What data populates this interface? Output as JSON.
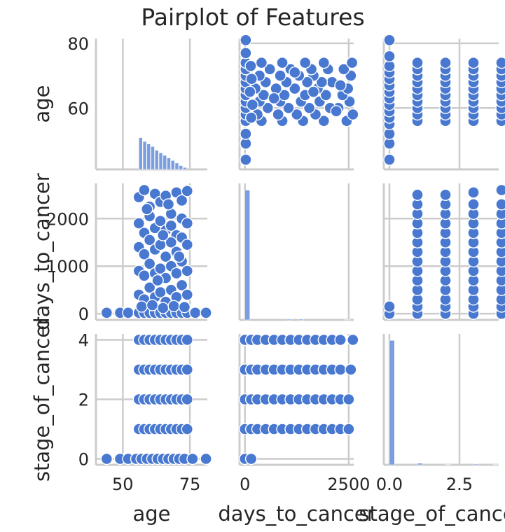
{
  "chart_data": {
    "type": "scatter",
    "title": "Pairplot of Features",
    "variables": [
      "age",
      "days_to_cancer",
      "stage_of_cancer"
    ],
    "axis_labels": {
      "x": [
        "age",
        "days_to_cancer",
        "stage_of_cancer"
      ],
      "y": [
        "age",
        "days_to_cancer",
        "stage_of_cancer"
      ]
    },
    "ranges": {
      "age": [
        41,
        81.5
      ],
      "days_to_cancer": [
        -130,
        2740
      ],
      "stage_of_cancer": [
        -0.2,
        4.2
      ]
    },
    "x_ranges": {
      "age": [
        40,
        81.5
      ],
      "days_to_cancer": [
        -130,
        2620
      ],
      "stage_of_cancer": [
        -0.2,
        3.9
      ]
    },
    "ticks": {
      "x": {
        "age": [
          {
            "v": 50,
            "label": "50"
          },
          {
            "v": 75,
            "label": "75"
          }
        ],
        "days_to_cancer": [
          {
            "v": 0,
            "label": "0"
          },
          {
            "v": 2500,
            "label": "2500"
          }
        ],
        "stage_of_cancer": [
          {
            "v": 0,
            "label": "0.0"
          },
          {
            "v": 2.5,
            "label": "2.5"
          }
        ]
      },
      "y": {
        "age": [
          {
            "v": 60,
            "label": "60"
          },
          {
            "v": 80,
            "label": "80"
          }
        ],
        "days_to_cancer": [
          {
            "v": 0,
            "label": "0"
          },
          {
            "v": 1000,
            "label": "1000"
          },
          {
            "v": 2000,
            "label": "2000"
          }
        ],
        "stage_of_cancer": [
          {
            "v": 0,
            "label": "0"
          },
          {
            "v": 2,
            "label": "2"
          },
          {
            "v": 4,
            "label": "4"
          }
        ]
      }
    },
    "histograms": {
      "age": {
        "bins": [
          [
            56,
            57.5
          ],
          [
            57.5,
            59
          ],
          [
            59,
            60.5
          ],
          [
            60.5,
            62
          ],
          [
            62,
            63.5
          ],
          [
            63.5,
            65
          ],
          [
            65,
            66.5
          ],
          [
            66.5,
            68
          ],
          [
            68,
            69.5
          ],
          [
            69.5,
            71
          ],
          [
            71,
            72.5
          ],
          [
            72.5,
            74
          ]
        ],
        "counts": [
          0.25,
          0.22,
          0.2,
          0.18,
          0.15,
          0.13,
          0.11,
          0.09,
          0.07,
          0.05,
          0.03,
          0.015
        ]
      },
      "days_to_cancer": {
        "bins": [
          [
            0,
            130
          ],
          [
            1000,
            1130
          ],
          [
            1300,
            1430
          ],
          [
            2400,
            2530
          ]
        ],
        "counts": [
          0.98,
          0.006,
          0.006,
          0.004
        ]
      },
      "stage_of_cancer": {
        "bins": [
          [
            0,
            0.2
          ],
          [
            1,
            1.2
          ],
          [
            2,
            2.2
          ],
          [
            3,
            3.2
          ],
          [
            3.7,
            3.9
          ]
        ],
        "counts": [
          0.98,
          0.012,
          0.004,
          0.006,
          0.004
        ]
      }
    },
    "scatter": {
      "age_vs_days_to_cancer": [
        [
          44,
          20
        ],
        [
          49,
          20
        ],
        [
          52,
          20
        ],
        [
          56,
          20
        ],
        [
          58,
          20
        ],
        [
          60,
          20
        ],
        [
          62,
          20
        ],
        [
          64,
          20
        ],
        [
          66,
          20
        ],
        [
          68,
          20
        ],
        [
          70,
          20
        ],
        [
          72,
          20
        ],
        [
          74,
          20
        ],
        [
          77,
          20
        ],
        [
          81,
          20
        ],
        [
          56,
          2450
        ],
        [
          58,
          2600
        ],
        [
          60,
          2250
        ],
        [
          62,
          2520
        ],
        [
          64,
          2350
        ],
        [
          66,
          2480
        ],
        [
          68,
          2100
        ],
        [
          70,
          2550
        ],
        [
          72,
          2380
        ],
        [
          74,
          2580
        ],
        [
          56,
          1900
        ],
        [
          58,
          1700
        ],
        [
          60,
          2050
        ],
        [
          62,
          1800
        ],
        [
          64,
          1950
        ],
        [
          66,
          1750
        ],
        [
          68,
          1850
        ],
        [
          70,
          1650
        ],
        [
          72,
          2000
        ],
        [
          74,
          1900
        ],
        [
          56,
          1400
        ],
        [
          58,
          1250
        ],
        [
          60,
          1550
        ],
        [
          62,
          1350
        ],
        [
          64,
          1450
        ],
        [
          66,
          1200
        ],
        [
          68,
          1500
        ],
        [
          70,
          1300
        ],
        [
          72,
          1600
        ],
        [
          74,
          1450
        ],
        [
          56,
          900
        ],
        [
          58,
          800
        ],
        [
          60,
          1050
        ],
        [
          62,
          850
        ],
        [
          64,
          950
        ],
        [
          66,
          750
        ],
        [
          68,
          1000
        ],
        [
          70,
          850
        ],
        [
          72,
          1100
        ],
        [
          74,
          900
        ],
        [
          56,
          400
        ],
        [
          58,
          300
        ],
        [
          60,
          550
        ],
        [
          62,
          350
        ],
        [
          64,
          450
        ],
        [
          66,
          250
        ],
        [
          68,
          500
        ],
        [
          70,
          350
        ],
        [
          72,
          600
        ],
        [
          74,
          400
        ],
        [
          57,
          150
        ],
        [
          61,
          180
        ],
        [
          65,
          120
        ],
        [
          69,
          160
        ],
        [
          73,
          140
        ],
        [
          59,
          2200
        ],
        [
          67,
          2300
        ],
        [
          71,
          1200
        ],
        [
          63,
          700
        ],
        [
          65,
          1650
        ]
      ],
      "age_vs_stage": [
        [
          44,
          0
        ],
        [
          49,
          0
        ],
        [
          52,
          0
        ],
        [
          55,
          0
        ],
        [
          57,
          0
        ],
        [
          59,
          0
        ],
        [
          61,
          0
        ],
        [
          63,
          0
        ],
        [
          65,
          0
        ],
        [
          67,
          0
        ],
        [
          69,
          0
        ],
        [
          71,
          0
        ],
        [
          73,
          0
        ],
        [
          76,
          0
        ],
        [
          81,
          0
        ],
        [
          56,
          1
        ],
        [
          58,
          1
        ],
        [
          60,
          1
        ],
        [
          62,
          1
        ],
        [
          64,
          1
        ],
        [
          66,
          1
        ],
        [
          68,
          1
        ],
        [
          70,
          1
        ],
        [
          72,
          1
        ],
        [
          74,
          1
        ],
        [
          56,
          2
        ],
        [
          58,
          2
        ],
        [
          60,
          2
        ],
        [
          62,
          2
        ],
        [
          64,
          2
        ],
        [
          66,
          2
        ],
        [
          68,
          2
        ],
        [
          70,
          2
        ],
        [
          72,
          2
        ],
        [
          74,
          2
        ],
        [
          56,
          3
        ],
        [
          58,
          3
        ],
        [
          60,
          3
        ],
        [
          62,
          3
        ],
        [
          64,
          3
        ],
        [
          66,
          3
        ],
        [
          68,
          3
        ],
        [
          70,
          3
        ],
        [
          72,
          3
        ],
        [
          74,
          3
        ],
        [
          56,
          4
        ],
        [
          58,
          4
        ],
        [
          60,
          4
        ],
        [
          62,
          4
        ],
        [
          64,
          4
        ],
        [
          66,
          4
        ],
        [
          68,
          4
        ],
        [
          70,
          4
        ],
        [
          72,
          4
        ],
        [
          74,
          4
        ]
      ],
      "days_vs_stage": [
        [
          0,
          0
        ],
        [
          150,
          0
        ],
        [
          0,
          1
        ],
        [
          150,
          1
        ],
        [
          300,
          1
        ],
        [
          500,
          1
        ],
        [
          700,
          1
        ],
        [
          900,
          1
        ],
        [
          1100,
          1
        ],
        [
          1300,
          1
        ],
        [
          1500,
          1
        ],
        [
          1700,
          1
        ],
        [
          1900,
          1
        ],
        [
          2100,
          1
        ],
        [
          2300,
          1
        ],
        [
          2500,
          1
        ],
        [
          0,
          2
        ],
        [
          150,
          2
        ],
        [
          300,
          2
        ],
        [
          500,
          2
        ],
        [
          700,
          2
        ],
        [
          900,
          2
        ],
        [
          1100,
          2
        ],
        [
          1300,
          2
        ],
        [
          1500,
          2
        ],
        [
          1700,
          2
        ],
        [
          1900,
          2
        ],
        [
          2100,
          2
        ],
        [
          2300,
          2
        ],
        [
          2500,
          2
        ],
        [
          0,
          3
        ],
        [
          150,
          3
        ],
        [
          300,
          3
        ],
        [
          500,
          3
        ],
        [
          700,
          3
        ],
        [
          900,
          3
        ],
        [
          1100,
          3
        ],
        [
          1300,
          3
        ],
        [
          1500,
          3
        ],
        [
          1700,
          3
        ],
        [
          1900,
          3
        ],
        [
          2100,
          3
        ],
        [
          2300,
          3
        ],
        [
          2550,
          3
        ],
        [
          0,
          4
        ],
        [
          150,
          4
        ],
        [
          300,
          4
        ],
        [
          500,
          4
        ],
        [
          700,
          4
        ],
        [
          900,
          4
        ],
        [
          1100,
          4
        ],
        [
          1300,
          4
        ],
        [
          1500,
          4
        ],
        [
          1700,
          4
        ],
        [
          1900,
          4
        ],
        [
          2100,
          4
        ],
        [
          2300,
          4
        ],
        [
          2600,
          4
        ]
      ]
    },
    "grid": true,
    "color": "#4878d0",
    "hist_color": "#7a9ee0"
  }
}
